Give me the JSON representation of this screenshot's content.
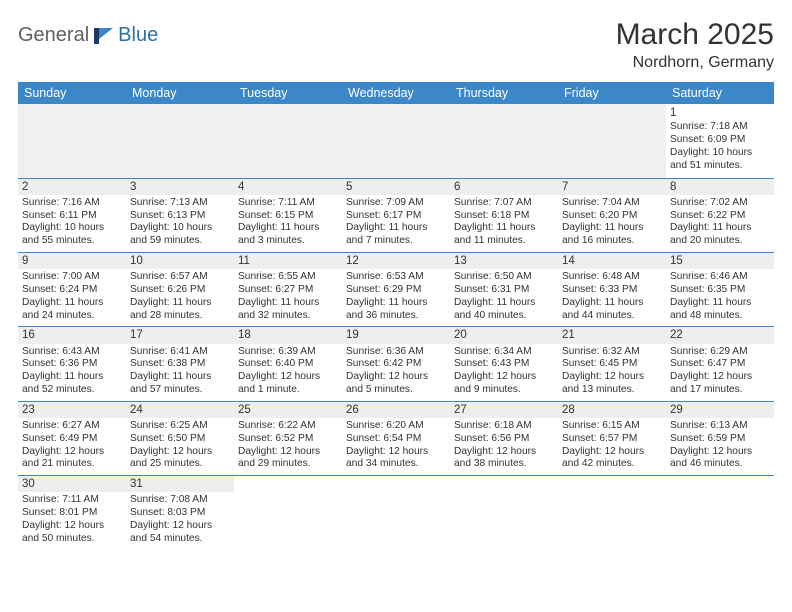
{
  "logo": {
    "general": "General",
    "blue": "Blue"
  },
  "title": "March 2025",
  "subtitle": "Nordhorn, Germany",
  "colors": {
    "header_bg": "#3b87c8",
    "header_fg": "#ffffff",
    "cell_border": "#3b87c8",
    "band_bg": "#eeeeee",
    "empty_bg": "#f0f0f0",
    "text": "#333333"
  },
  "weekdays": [
    "Sunday",
    "Monday",
    "Tuesday",
    "Wednesday",
    "Thursday",
    "Friday",
    "Saturday"
  ],
  "weeks": [
    [
      null,
      null,
      null,
      null,
      null,
      null,
      {
        "n": "1",
        "sr": "Sunrise: 7:18 AM",
        "ss": "Sunset: 6:09 PM",
        "dl1": "Daylight: 10 hours",
        "dl2": "and 51 minutes."
      }
    ],
    [
      {
        "n": "2",
        "sr": "Sunrise: 7:16 AM",
        "ss": "Sunset: 6:11 PM",
        "dl1": "Daylight: 10 hours",
        "dl2": "and 55 minutes."
      },
      {
        "n": "3",
        "sr": "Sunrise: 7:13 AM",
        "ss": "Sunset: 6:13 PM",
        "dl1": "Daylight: 10 hours",
        "dl2": "and 59 minutes."
      },
      {
        "n": "4",
        "sr": "Sunrise: 7:11 AM",
        "ss": "Sunset: 6:15 PM",
        "dl1": "Daylight: 11 hours",
        "dl2": "and 3 minutes."
      },
      {
        "n": "5",
        "sr": "Sunrise: 7:09 AM",
        "ss": "Sunset: 6:17 PM",
        "dl1": "Daylight: 11 hours",
        "dl2": "and 7 minutes."
      },
      {
        "n": "6",
        "sr": "Sunrise: 7:07 AM",
        "ss": "Sunset: 6:18 PM",
        "dl1": "Daylight: 11 hours",
        "dl2": "and 11 minutes."
      },
      {
        "n": "7",
        "sr": "Sunrise: 7:04 AM",
        "ss": "Sunset: 6:20 PM",
        "dl1": "Daylight: 11 hours",
        "dl2": "and 16 minutes."
      },
      {
        "n": "8",
        "sr": "Sunrise: 7:02 AM",
        "ss": "Sunset: 6:22 PM",
        "dl1": "Daylight: 11 hours",
        "dl2": "and 20 minutes."
      }
    ],
    [
      {
        "n": "9",
        "sr": "Sunrise: 7:00 AM",
        "ss": "Sunset: 6:24 PM",
        "dl1": "Daylight: 11 hours",
        "dl2": "and 24 minutes."
      },
      {
        "n": "10",
        "sr": "Sunrise: 6:57 AM",
        "ss": "Sunset: 6:26 PM",
        "dl1": "Daylight: 11 hours",
        "dl2": "and 28 minutes."
      },
      {
        "n": "11",
        "sr": "Sunrise: 6:55 AM",
        "ss": "Sunset: 6:27 PM",
        "dl1": "Daylight: 11 hours",
        "dl2": "and 32 minutes."
      },
      {
        "n": "12",
        "sr": "Sunrise: 6:53 AM",
        "ss": "Sunset: 6:29 PM",
        "dl1": "Daylight: 11 hours",
        "dl2": "and 36 minutes."
      },
      {
        "n": "13",
        "sr": "Sunrise: 6:50 AM",
        "ss": "Sunset: 6:31 PM",
        "dl1": "Daylight: 11 hours",
        "dl2": "and 40 minutes."
      },
      {
        "n": "14",
        "sr": "Sunrise: 6:48 AM",
        "ss": "Sunset: 6:33 PM",
        "dl1": "Daylight: 11 hours",
        "dl2": "and 44 minutes."
      },
      {
        "n": "15",
        "sr": "Sunrise: 6:46 AM",
        "ss": "Sunset: 6:35 PM",
        "dl1": "Daylight: 11 hours",
        "dl2": "and 48 minutes."
      }
    ],
    [
      {
        "n": "16",
        "sr": "Sunrise: 6:43 AM",
        "ss": "Sunset: 6:36 PM",
        "dl1": "Daylight: 11 hours",
        "dl2": "and 52 minutes."
      },
      {
        "n": "17",
        "sr": "Sunrise: 6:41 AM",
        "ss": "Sunset: 6:38 PM",
        "dl1": "Daylight: 11 hours",
        "dl2": "and 57 minutes."
      },
      {
        "n": "18",
        "sr": "Sunrise: 6:39 AM",
        "ss": "Sunset: 6:40 PM",
        "dl1": "Daylight: 12 hours",
        "dl2": "and 1 minute."
      },
      {
        "n": "19",
        "sr": "Sunrise: 6:36 AM",
        "ss": "Sunset: 6:42 PM",
        "dl1": "Daylight: 12 hours",
        "dl2": "and 5 minutes."
      },
      {
        "n": "20",
        "sr": "Sunrise: 6:34 AM",
        "ss": "Sunset: 6:43 PM",
        "dl1": "Daylight: 12 hours",
        "dl2": "and 9 minutes."
      },
      {
        "n": "21",
        "sr": "Sunrise: 6:32 AM",
        "ss": "Sunset: 6:45 PM",
        "dl1": "Daylight: 12 hours",
        "dl2": "and 13 minutes."
      },
      {
        "n": "22",
        "sr": "Sunrise: 6:29 AM",
        "ss": "Sunset: 6:47 PM",
        "dl1": "Daylight: 12 hours",
        "dl2": "and 17 minutes."
      }
    ],
    [
      {
        "n": "23",
        "sr": "Sunrise: 6:27 AM",
        "ss": "Sunset: 6:49 PM",
        "dl1": "Daylight: 12 hours",
        "dl2": "and 21 minutes."
      },
      {
        "n": "24",
        "sr": "Sunrise: 6:25 AM",
        "ss": "Sunset: 6:50 PM",
        "dl1": "Daylight: 12 hours",
        "dl2": "and 25 minutes."
      },
      {
        "n": "25",
        "sr": "Sunrise: 6:22 AM",
        "ss": "Sunset: 6:52 PM",
        "dl1": "Daylight: 12 hours",
        "dl2": "and 29 minutes."
      },
      {
        "n": "26",
        "sr": "Sunrise: 6:20 AM",
        "ss": "Sunset: 6:54 PM",
        "dl1": "Daylight: 12 hours",
        "dl2": "and 34 minutes."
      },
      {
        "n": "27",
        "sr": "Sunrise: 6:18 AM",
        "ss": "Sunset: 6:56 PM",
        "dl1": "Daylight: 12 hours",
        "dl2": "and 38 minutes."
      },
      {
        "n": "28",
        "sr": "Sunrise: 6:15 AM",
        "ss": "Sunset: 6:57 PM",
        "dl1": "Daylight: 12 hours",
        "dl2": "and 42 minutes."
      },
      {
        "n": "29",
        "sr": "Sunrise: 6:13 AM",
        "ss": "Sunset: 6:59 PM",
        "dl1": "Daylight: 12 hours",
        "dl2": "and 46 minutes."
      }
    ],
    [
      {
        "n": "30",
        "sr": "Sunrise: 7:11 AM",
        "ss": "Sunset: 8:01 PM",
        "dl1": "Daylight: 12 hours",
        "dl2": "and 50 minutes."
      },
      {
        "n": "31",
        "sr": "Sunrise: 7:08 AM",
        "ss": "Sunset: 8:03 PM",
        "dl1": "Daylight: 12 hours",
        "dl2": "and 54 minutes."
      },
      null,
      null,
      null,
      null,
      null
    ]
  ]
}
